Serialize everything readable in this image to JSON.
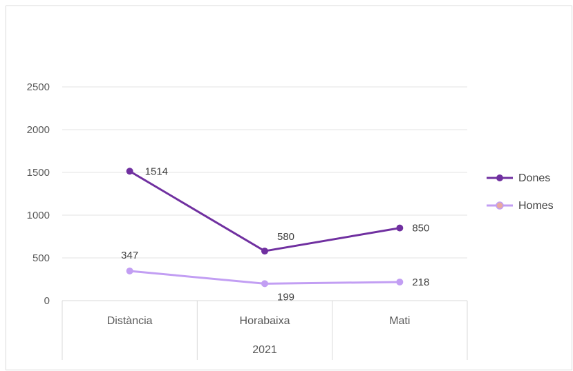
{
  "chart_data": {
    "type": "line",
    "title": "",
    "xlabel": "",
    "ylabel": "",
    "ylim": [
      0,
      2500
    ],
    "yticks": [
      0,
      500,
      1000,
      1500,
      2000,
      2500
    ],
    "categories": [
      "Distància",
      "Horabaixa",
      "Mati"
    ],
    "group_label": "2021",
    "grid": true,
    "legend_position": "right",
    "series": [
      {
        "name": "Dones",
        "values": [
          1514,
          580,
          850
        ],
        "color": "#7030a0"
      },
      {
        "name": "Homes",
        "values": [
          347,
          199,
          218
        ],
        "color": "#c29ef3"
      }
    ]
  }
}
